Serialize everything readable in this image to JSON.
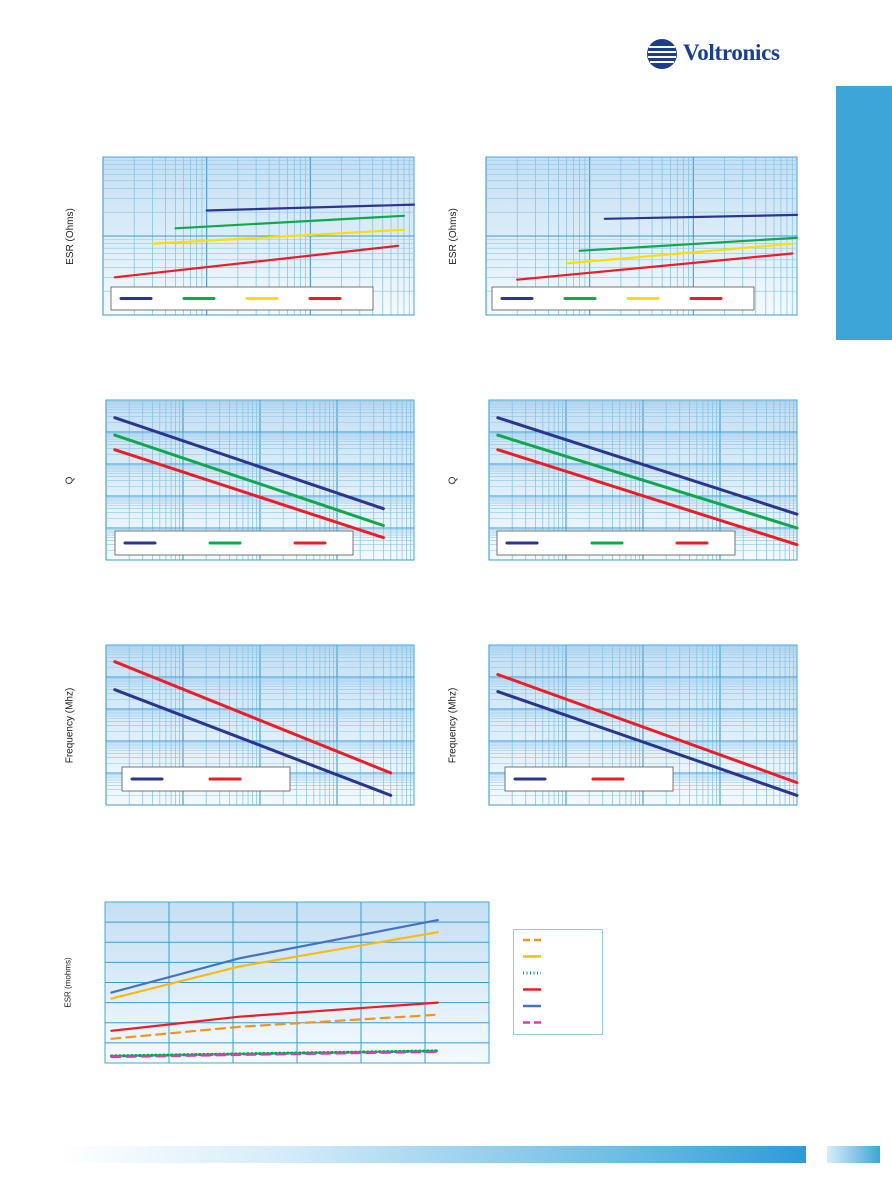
{
  "brand": {
    "name": "Voltronics",
    "color": "#1a3d8f",
    "accent": "#3ea5d8"
  },
  "chart_data": [
    {
      "type": "line",
      "scale": "log-log",
      "grid": true,
      "legend": "bottom-left",
      "ylabel": "ESR (Ohms)",
      "xlim": [
        1,
        1000
      ],
      "ylim": [
        0.01,
        1
      ],
      "series": [
        {
          "color": "#2b3590",
          "x": [
            10,
            1000
          ],
          "y": [
            0.21,
            0.25
          ]
        },
        {
          "color": "#0fa84a",
          "x": [
            5,
            800
          ],
          "y": [
            0.125,
            0.18
          ]
        },
        {
          "color": "#ffdd00",
          "x": [
            3,
            800
          ],
          "y": [
            0.08,
            0.12
          ]
        },
        {
          "color": "#ee1c25",
          "x": [
            1.3,
            700
          ],
          "y": [
            0.03,
            0.075
          ]
        }
      ]
    },
    {
      "type": "line",
      "scale": "log-log",
      "grid": true,
      "legend": "bottom-left",
      "ylabel": "ESR (Ohms)",
      "xlim": [
        1,
        1000
      ],
      "ylim": [
        0.01,
        1
      ],
      "series": [
        {
          "color": "#2b3590",
          "x": [
            14,
            1000
          ],
          "y": [
            0.165,
            0.185
          ]
        },
        {
          "color": "#0fa84a",
          "x": [
            8,
            1000
          ],
          "y": [
            0.065,
            0.095
          ]
        },
        {
          "color": "#ffdd00",
          "x": [
            6,
            900
          ],
          "y": [
            0.045,
            0.08
          ]
        },
        {
          "color": "#ee1c25",
          "x": [
            2,
            900
          ],
          "y": [
            0.028,
            0.06
          ]
        }
      ]
    },
    {
      "type": "line",
      "scale": "log-log",
      "grid": true,
      "legend": "bottom-left",
      "ylabel": "Q",
      "xlim": [
        1,
        10000
      ],
      "ylim": [
        1,
        100000
      ],
      "series": [
        {
          "color": "#2b3590",
          "x": [
            1.3,
            4000
          ],
          "y": [
            28000,
            40
          ]
        },
        {
          "color": "#0fa84a",
          "x": [
            1.3,
            4000
          ],
          "y": [
            8000,
            12
          ]
        },
        {
          "color": "#ee1c25",
          "x": [
            1.3,
            4000
          ],
          "y": [
            2800,
            5
          ]
        }
      ]
    },
    {
      "type": "line",
      "scale": "log-log",
      "grid": true,
      "legend": "bottom-left",
      "ylabel": "Q",
      "xlim": [
        1,
        10000
      ],
      "ylim": [
        1,
        100000
      ],
      "series": [
        {
          "color": "#2b3590",
          "x": [
            1.3,
            10000
          ],
          "y": [
            28000,
            27
          ]
        },
        {
          "color": "#0fa84a",
          "x": [
            1.3,
            10000
          ],
          "y": [
            8000,
            10
          ]
        },
        {
          "color": "#ee1c25",
          "x": [
            1.3,
            10000
          ],
          "y": [
            2800,
            3
          ]
        }
      ]
    },
    {
      "type": "line",
      "scale": "log-log",
      "grid": true,
      "legend": "bottom-left",
      "ylabel": "Frequency (Mhz)",
      "xlim": [
        1,
        10000
      ],
      "ylim": [
        1,
        100000
      ],
      "series": [
        {
          "color": "#2b3590",
          "x": [
            1.3,
            5000
          ],
          "y": [
            4000,
            2
          ]
        },
        {
          "color": "#ee1c25",
          "x": [
            1.3,
            5000
          ],
          "y": [
            30000,
            10
          ]
        }
      ]
    },
    {
      "type": "line",
      "scale": "log-log",
      "grid": true,
      "legend": "bottom-left",
      "ylabel": "Frequency (Mhz)",
      "xlim": [
        1,
        10000
      ],
      "ylim": [
        1,
        100000
      ],
      "series": [
        {
          "color": "#2b3590",
          "x": [
            1.3,
            10000
          ],
          "y": [
            3500,
            2
          ]
        },
        {
          "color": "#ee1c25",
          "x": [
            1.3,
            10000
          ],
          "y": [
            12000,
            5
          ]
        }
      ]
    },
    {
      "type": "line",
      "grid": true,
      "legend": "right",
      "ylabel": "ESR (mohms)",
      "xlim": [
        0,
        6
      ],
      "ylim": [
        0,
        8
      ],
      "series": [
        {
          "color": "#f7941d",
          "dash": "dash",
          "x": [
            0.1,
            2.1,
            5.2
          ],
          "y": [
            1.2,
            1.8,
            2.4
          ]
        },
        {
          "color": "#fdb913",
          "dash": "solid",
          "x": [
            0.1,
            2.1,
            5.2
          ],
          "y": [
            3.2,
            4.8,
            6.5
          ]
        },
        {
          "color": "#00a651",
          "dash": "dot",
          "x": [
            0.1,
            2.1,
            5.2
          ],
          "y": [
            0.35,
            0.45,
            0.6
          ]
        },
        {
          "color": "#ee1c25",
          "dash": "solid",
          "x": [
            0.1,
            2.1,
            5.2
          ],
          "y": [
            1.6,
            2.3,
            3.0
          ]
        },
        {
          "color": "#4472c4",
          "dash": "solid",
          "x": [
            0.1,
            2.1,
            5.2
          ],
          "y": [
            3.5,
            5.2,
            7.1
          ]
        },
        {
          "color": "#d83bb3",
          "dash": "dash",
          "x": [
            0.1,
            2.1,
            5.2
          ],
          "y": [
            0.3,
            0.4,
            0.55
          ]
        }
      ]
    }
  ]
}
